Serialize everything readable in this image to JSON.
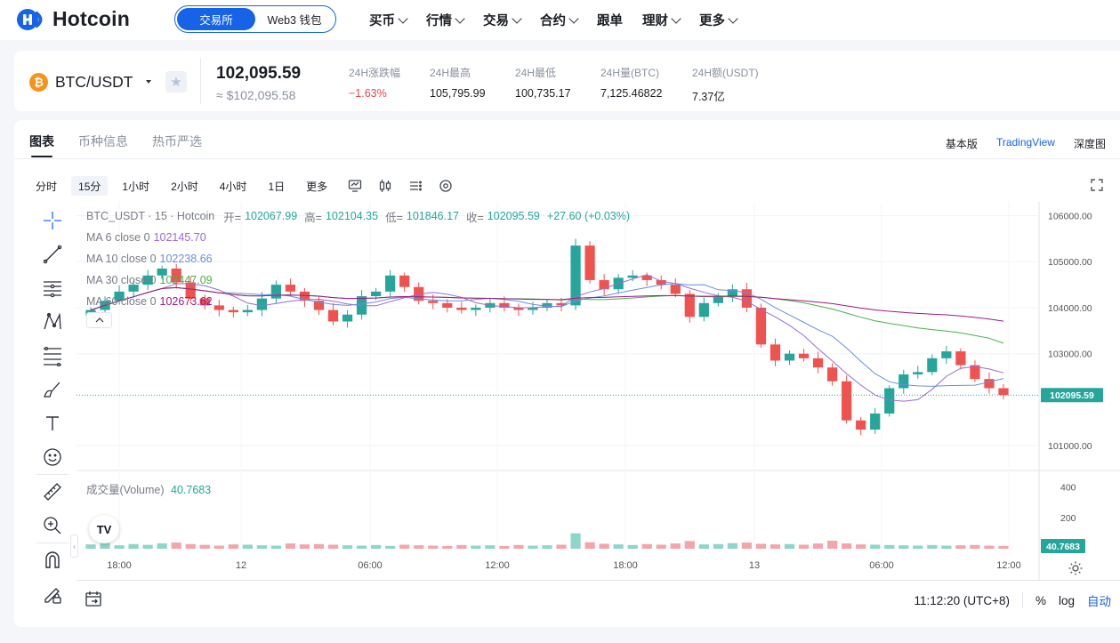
{
  "brand": {
    "name": "Hotcoin"
  },
  "mode_switch": {
    "exchange": "交易所",
    "web3": "Web3 钱包"
  },
  "nav": [
    "买币",
    "行情",
    "交易",
    "合约",
    "跟单",
    "理财",
    "更多"
  ],
  "ticker": {
    "pair": "BTC/USDT",
    "coin_symbol": "₿",
    "last_price": "102,095.59",
    "fiat_price": "≈ $102,095.58",
    "stats": [
      {
        "label": "24H涨跌幅",
        "value": "−1.63%",
        "negative": true
      },
      {
        "label": "24H最高",
        "value": "105,795.99"
      },
      {
        "label": "24H最低",
        "value": "100,735.17"
      },
      {
        "label": "24H量(BTC)",
        "value": "7,125.46822"
      },
      {
        "label": "24H额(USDT)",
        "value": "7.37亿"
      }
    ]
  },
  "tabs": [
    "图表",
    "币种信息",
    "热币严选"
  ],
  "view_modes": [
    "基本版",
    "TradingView",
    "深度图"
  ],
  "timeframes": [
    "分时",
    "15分",
    "1小时",
    "2小时",
    "4小时",
    "1日",
    "更多"
  ],
  "active_timeframe": "15分",
  "legend": {
    "symbol": "BTC_USDT · 15 · Hotcoin",
    "open_label": "开=",
    "open": "102067.99",
    "high_label": "高=",
    "high": "102104.35",
    "low_label": "低=",
    "low": "101846.17",
    "close_label": "收=",
    "close": "102095.59",
    "change": "+27.60 (+0.03%)",
    "ma": [
      {
        "label": "MA 6 close 0",
        "value": "102145.70",
        "color": "#9c6bd0"
      },
      {
        "label": "MA 10 close 0",
        "value": "102238.66",
        "color": "#6c8ed8"
      },
      {
        "label": "MA 30 close 0",
        "value": "102447.09",
        "color": "#4caf50"
      },
      {
        "label": "MA 60 close 0",
        "value": "102673.62",
        "color": "#9c1a87"
      }
    ]
  },
  "volume_legend": {
    "label": "成交量(Volume)",
    "value": "40.7683"
  },
  "chart_data": {
    "type": "candlestick",
    "y_ticks": [
      106000,
      105000,
      104000,
      103000,
      101000
    ],
    "y_tick_labels": [
      "106000.00",
      "105000.00",
      "104000.00",
      "103000.00",
      "101000.00"
    ],
    "ylim": [
      100500,
      106300
    ],
    "last_price_label": "102095.59",
    "volume_ticks": [
      400,
      200
    ],
    "volume_last_label": "40.7683",
    "x_tick_labels": [
      "18:00",
      "12",
      "06:00",
      "12:00",
      "18:00",
      "13",
      "06:00",
      "12:00"
    ],
    "up_color": "#26a69a",
    "down_color": "#ef5350",
    "close_series": [
      103950,
      104150,
      104350,
      104500,
      104700,
      104850,
      104550,
      104200,
      104050,
      103950,
      103900,
      103950,
      104200,
      104500,
      104350,
      104150,
      103950,
      103700,
      103850,
      104250,
      104350,
      104700,
      104450,
      104150,
      104100,
      104000,
      103950,
      104000,
      104100,
      104000,
      103950,
      104000,
      104100,
      104050,
      105350,
      104600,
      104400,
      104650,
      104700,
      104600,
      104500,
      104300,
      103800,
      104100,
      104250,
      104400,
      104000,
      103200,
      102850,
      103000,
      102900,
      102700,
      102400,
      101550,
      101350,
      101700,
      102250,
      102550,
      102600,
      102900,
      103050,
      102750,
      102450,
      102250,
      102100
    ],
    "volume_series": [
      28,
      36,
      22,
      30,
      25,
      35,
      40,
      30,
      25,
      20,
      28,
      26,
      22,
      20,
      34,
      28,
      30,
      26,
      22,
      20,
      24,
      18,
      26,
      22,
      20,
      18,
      24,
      20,
      22,
      18,
      24,
      20,
      22,
      26,
      100,
      42,
      32,
      28,
      24,
      30,
      26,
      34,
      50,
      28,
      30,
      36,
      40,
      32,
      28,
      30,
      26,
      34,
      52,
      34,
      28,
      26,
      24,
      22,
      20,
      24,
      20,
      22,
      24,
      20,
      18
    ]
  },
  "bottom_bar": {
    "time": "11:12:20 (UTC+8)",
    "percent": "%",
    "log": "log",
    "auto": "自动"
  }
}
